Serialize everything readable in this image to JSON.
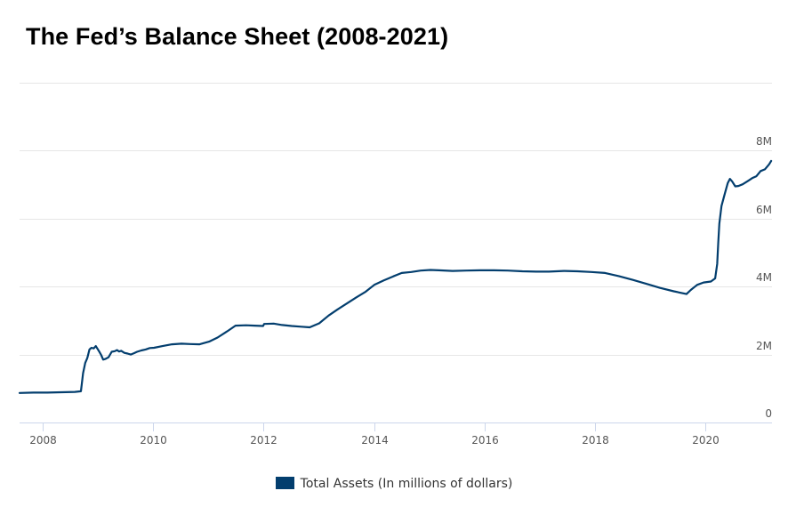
{
  "title": "The Fed’s Balance Sheet (2008-2021)",
  "colors": {
    "series": "#033e6e",
    "grid": "#e6e6e6",
    "axis": "#ccd6eb",
    "tick_text": "#555555"
  },
  "chart_data": {
    "type": "line",
    "title": "The Fed’s Balance Sheet (2008-2021)",
    "xlabel": "",
    "ylabel": "",
    "x_range": [
      "2007-08-01",
      "2021-03-15"
    ],
    "ylim": [
      0,
      10000000
    ],
    "grid": "horizontal",
    "legend_position": "bottom-center",
    "x_ticks": [
      {
        "date": "2008-01-01",
        "label": "2008"
      },
      {
        "date": "2010-01-01",
        "label": "2010"
      },
      {
        "date": "2012-01-01",
        "label": "2012"
      },
      {
        "date": "2014-01-01",
        "label": "2014"
      },
      {
        "date": "2016-01-01",
        "label": "2016"
      },
      {
        "date": "2018-01-01",
        "label": "2018"
      },
      {
        "date": "2020-01-01",
        "label": "2020"
      }
    ],
    "y_ticks": [
      {
        "value": 0,
        "label": "0"
      },
      {
        "value": 2000000,
        "label": "2M"
      },
      {
        "value": 4000000,
        "label": "4M"
      },
      {
        "value": 6000000,
        "label": "6M"
      },
      {
        "value": 8000000,
        "label": "8M"
      },
      {
        "value": 10000000,
        "label": ""
      }
    ],
    "series": [
      {
        "name": "Total Assets (In millions of dollars)",
        "color": "#033e6e",
        "points": [
          [
            "2007-08-01",
            870000
          ],
          [
            "2007-11-01",
            880000
          ],
          [
            "2008-02-01",
            880000
          ],
          [
            "2008-05-01",
            890000
          ],
          [
            "2008-08-01",
            900000
          ],
          [
            "2008-09-10",
            920000
          ],
          [
            "2008-09-24",
            1450000
          ],
          [
            "2008-10-08",
            1750000
          ],
          [
            "2008-10-22",
            1900000
          ],
          [
            "2008-11-05",
            2150000
          ],
          [
            "2008-11-19",
            2200000
          ],
          [
            "2008-12-03",
            2180000
          ],
          [
            "2008-12-17",
            2250000
          ],
          [
            "2009-01-07",
            2100000
          ],
          [
            "2009-01-21",
            1990000
          ],
          [
            "2009-02-04",
            1850000
          ],
          [
            "2009-02-18",
            1870000
          ],
          [
            "2009-03-11",
            1920000
          ],
          [
            "2009-04-01",
            2080000
          ],
          [
            "2009-04-22",
            2100000
          ],
          [
            "2009-05-06",
            2130000
          ],
          [
            "2009-05-20",
            2090000
          ],
          [
            "2009-06-03",
            2110000
          ],
          [
            "2009-06-24",
            2050000
          ],
          [
            "2009-07-15",
            2030000
          ],
          [
            "2009-08-05",
            2000000
          ],
          [
            "2009-08-26",
            2040000
          ],
          [
            "2009-09-16",
            2080000
          ],
          [
            "2009-10-14",
            2120000
          ],
          [
            "2009-11-11",
            2150000
          ],
          [
            "2009-12-09",
            2190000
          ],
          [
            "2010-01-06",
            2200000
          ],
          [
            "2010-03-03",
            2250000
          ],
          [
            "2010-05-05",
            2300000
          ],
          [
            "2010-07-07",
            2320000
          ],
          [
            "2010-09-01",
            2310000
          ],
          [
            "2010-11-03",
            2300000
          ],
          [
            "2011-01-05",
            2380000
          ],
          [
            "2011-03-02",
            2500000
          ],
          [
            "2011-05-04",
            2680000
          ],
          [
            "2011-06-29",
            2850000
          ],
          [
            "2011-09-07",
            2860000
          ],
          [
            "2011-11-02",
            2850000
          ],
          [
            "2011-12-28",
            2840000
          ],
          [
            "2012-01-04",
            2900000
          ],
          [
            "2012-03-07",
            2910000
          ],
          [
            "2012-05-02",
            2870000
          ],
          [
            "2012-07-04",
            2840000
          ],
          [
            "2012-09-05",
            2820000
          ],
          [
            "2012-10-31",
            2800000
          ],
          [
            "2013-01-02",
            2920000
          ],
          [
            "2013-03-06",
            3150000
          ],
          [
            "2013-05-01",
            3320000
          ],
          [
            "2013-07-03",
            3500000
          ],
          [
            "2013-09-04",
            3680000
          ],
          [
            "2013-11-06",
            3850000
          ],
          [
            "2014-01-01",
            4050000
          ],
          [
            "2014-03-05",
            4180000
          ],
          [
            "2014-05-07",
            4300000
          ],
          [
            "2014-07-02",
            4400000
          ],
          [
            "2014-09-03",
            4430000
          ],
          [
            "2014-11-05",
            4470000
          ],
          [
            "2015-01-07",
            4490000
          ],
          [
            "2015-03-04",
            4480000
          ],
          [
            "2015-06-03",
            4460000
          ],
          [
            "2015-09-02",
            4470000
          ],
          [
            "2015-12-02",
            4480000
          ],
          [
            "2016-03-02",
            4480000
          ],
          [
            "2016-06-01",
            4470000
          ],
          [
            "2016-09-07",
            4450000
          ],
          [
            "2016-12-07",
            4440000
          ],
          [
            "2017-03-01",
            4440000
          ],
          [
            "2017-06-07",
            4460000
          ],
          [
            "2017-09-06",
            4450000
          ],
          [
            "2017-12-06",
            4430000
          ],
          [
            "2018-03-07",
            4400000
          ],
          [
            "2018-06-06",
            4310000
          ],
          [
            "2018-09-05",
            4200000
          ],
          [
            "2018-12-05",
            4080000
          ],
          [
            "2019-03-06",
            3960000
          ],
          [
            "2019-06-05",
            3860000
          ],
          [
            "2019-08-28",
            3780000
          ],
          [
            "2019-09-25",
            3900000
          ],
          [
            "2019-11-06",
            4050000
          ],
          [
            "2019-12-18",
            4120000
          ],
          [
            "2020-02-05",
            4150000
          ],
          [
            "2020-03-04",
            4240000
          ],
          [
            "2020-03-18",
            4670000
          ],
          [
            "2020-03-25",
            5300000
          ],
          [
            "2020-04-01",
            5850000
          ],
          [
            "2020-04-15",
            6370000
          ],
          [
            "2020-05-06",
            6720000
          ],
          [
            "2020-05-27",
            7050000
          ],
          [
            "2020-06-10",
            7170000
          ],
          [
            "2020-06-24",
            7100000
          ],
          [
            "2020-07-15",
            6950000
          ],
          [
            "2020-08-05",
            6960000
          ],
          [
            "2020-09-02",
            7010000
          ],
          [
            "2020-10-07",
            7110000
          ],
          [
            "2020-11-04",
            7190000
          ],
          [
            "2020-12-02",
            7250000
          ],
          [
            "2020-12-30",
            7400000
          ],
          [
            "2021-01-27",
            7450000
          ],
          [
            "2021-02-24",
            7600000
          ],
          [
            "2021-03-10",
            7700000
          ]
        ]
      }
    ]
  }
}
